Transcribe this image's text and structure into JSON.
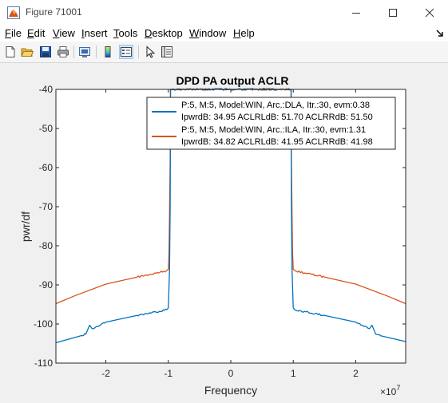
{
  "window": {
    "title": "Figure 71001",
    "icon": "matlab-figure-icon",
    "controls": [
      "minimize-icon",
      "maximize-icon",
      "close-icon"
    ]
  },
  "menubar": {
    "items": [
      {
        "label": "File",
        "mnemonic": "F",
        "rest": "ile"
      },
      {
        "label": "Edit",
        "mnemonic": "E",
        "rest": "dit"
      },
      {
        "label": "View",
        "mnemonic": "V",
        "rest": "iew"
      },
      {
        "label": "Insert",
        "mnemonic": "I",
        "rest": "nsert"
      },
      {
        "label": "Tools",
        "mnemonic": "T",
        "rest": "ools"
      },
      {
        "label": "Desktop",
        "mnemonic": "D",
        "rest": "esktop"
      },
      {
        "label": "Window",
        "mnemonic": "W",
        "rest": "indow"
      },
      {
        "label": "Help",
        "mnemonic": "H",
        "rest": "elp"
      }
    ],
    "dock_icon": "dock-arrow-icon"
  },
  "toolbar": {
    "buttons": [
      "new-figure-icon",
      "open-file-icon",
      "save-icon",
      "print-icon",
      "link-plot-icon",
      "insert-colorbar-icon",
      "insert-legend-icon",
      "pointer-icon",
      "property-inspector-icon"
    ]
  },
  "chart_data": {
    "type": "line",
    "title": "DPD PA output ACLR",
    "xlabel": "Frequency",
    "ylabel": "pwr/df",
    "x_exponent_label": "×10",
    "x_exponent": "7",
    "xlim": [
      -28000000,
      28000000
    ],
    "ylim": [
      -110,
      -40
    ],
    "xticks": [
      -20000000,
      -10000000,
      0,
      10000000,
      20000000
    ],
    "xtick_labels": [
      "-2",
      "-1",
      "0",
      "1",
      "2"
    ],
    "yticks": [
      -110,
      -100,
      -90,
      -80,
      -70,
      -60,
      -50,
      -40
    ],
    "ytick_labels": [
      "-110",
      "-100",
      "-90",
      "-80",
      "-70",
      "-60",
      "-50",
      "-40"
    ],
    "grid": false,
    "legend_position": "top-right",
    "series": [
      {
        "name": "P:5, M:5, Model:WIN, Arc.:DLA, Itr.:30, evm:0.38",
        "name_line2": "IpwrdB: 34.95 ACLRLdB: 51.70 ACLRRdB: 51.50",
        "color": "#0072bd",
        "x": [
          -28000000,
          -24000000,
          -23200000,
          -22600000,
          -22200000,
          -21500000,
          -20000000,
          -15000000,
          -12000000,
          -10200000,
          -10000000,
          -9800000,
          -9700000,
          -9650000,
          9650000,
          9700000,
          9800000,
          10000000,
          10200000,
          12000000,
          15000000,
          20000000,
          21500000,
          22200000,
          22600000,
          23200000,
          24000000,
          28000000
        ],
        "y": [
          -104.8,
          -103.0,
          -102.6,
          -100.3,
          -101.2,
          -100.6,
          -99.5,
          -97.8,
          -96.9,
          -96.3,
          -95.9,
          -86.0,
          -70.0,
          -40.0,
          -40.0,
          -70.0,
          -86.0,
          -95.9,
          -96.3,
          -96.9,
          -97.8,
          -99.5,
          -100.6,
          -101.2,
          -100.3,
          -102.6,
          -103.0,
          -104.5
        ]
      },
      {
        "name": "P:5, M:5, Model:WIN, Arc.:ILA, Itr.:30, evm:1.31",
        "name_line2": "IpwrdB: 34.82 ACLRLdB: 41.95 ACLRRdB: 41.98",
        "color": "#d95319",
        "x": [
          -28000000,
          -25000000,
          -20000000,
          -15000000,
          -12000000,
          -10300000,
          -10000000,
          -9900000,
          -9800000,
          -9700000,
          -9650000,
          9650000,
          9700000,
          9800000,
          9900000,
          10000000,
          10300000,
          12000000,
          15000000,
          20000000,
          25000000,
          28000000
        ],
        "y": [
          -94.8,
          -92.8,
          -89.8,
          -88.0,
          -87.0,
          -86.4,
          -86.0,
          -82.0,
          -72.0,
          -58.0,
          -40.0,
          -40.0,
          -58.0,
          -72.0,
          -82.0,
          -86.0,
          -86.4,
          -87.0,
          -88.0,
          -89.8,
          -92.8,
          -94.8
        ]
      }
    ]
  }
}
